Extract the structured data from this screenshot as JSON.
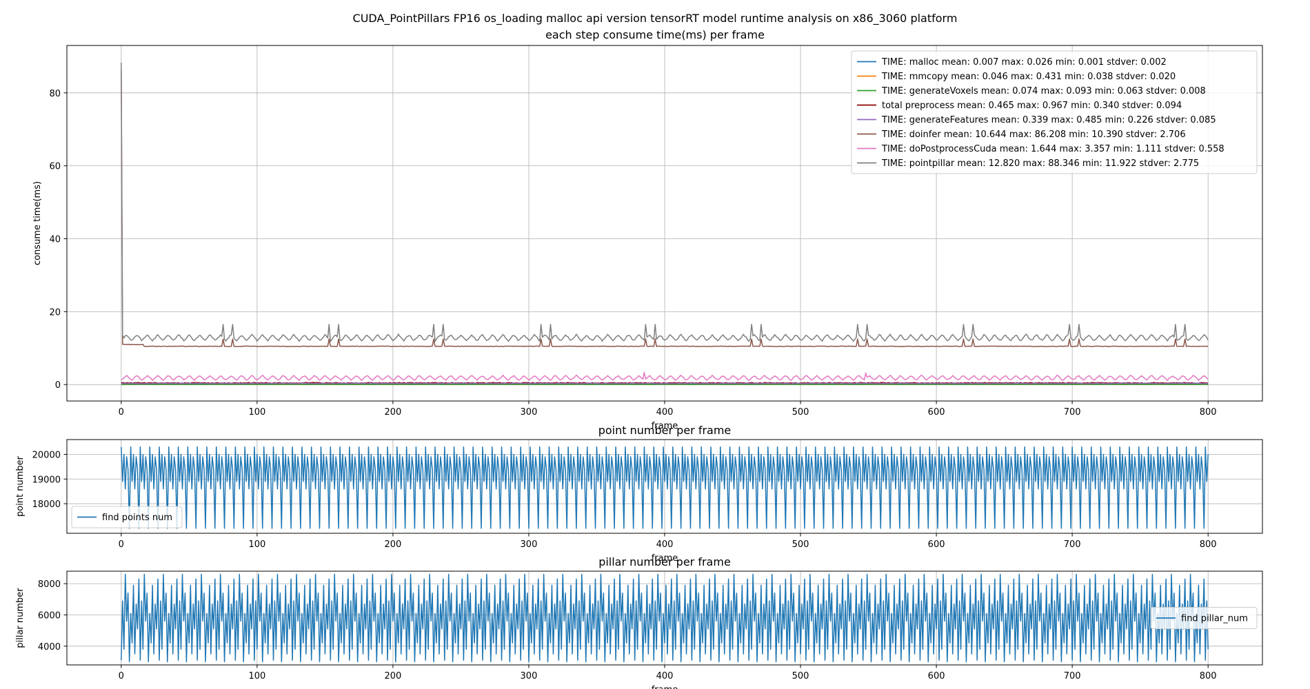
{
  "figure": {
    "suptitle_line1": "CUDA_PointPillars FP16 os_loading malloc api version tensorRT model runtime analysis on x86_3060 platform",
    "suptitle_line2": "each step consume time(ms) per frame"
  },
  "colors": {
    "tab_blue": "#1f77b4",
    "tab_orange": "#ff7f0e",
    "tab_green": "#2ca02c",
    "dark_red": "#8b0000",
    "tab_purple": "#9467bd",
    "tab_brown": "#8c564b",
    "tab_pink": "#e377c2",
    "tab_gray": "#7f7f7f",
    "grid": "#b0b0b0",
    "axes_edge": "#000000"
  },
  "chart_data": [
    {
      "type": "line",
      "title": "",
      "xlabel": "frame",
      "ylabel": "consume time(ms)",
      "xlim": [
        -40,
        840
      ],
      "ylim": [
        -4.5,
        93
      ],
      "xticks": [
        0,
        100,
        200,
        300,
        400,
        500,
        600,
        700,
        800
      ],
      "yticks": [
        0,
        20,
        40,
        60,
        80
      ],
      "grid": true,
      "legend_position": "upper right",
      "n_frames": 801,
      "series": [
        {
          "name": "TIME: malloc mean: 0.007 max: 0.026 min: 0.001 stdver: 0.002",
          "color": "#1f77b4",
          "mean": 0.007,
          "max": 0.026,
          "min": 0.001,
          "std": 0.002,
          "pattern": "flat"
        },
        {
          "name": "TIME: mmcopy mean: 0.046 max: 0.431 min: 0.038 stdver: 0.020",
          "color": "#ff7f0e",
          "mean": 0.046,
          "max": 0.431,
          "min": 0.038,
          "std": 0.02,
          "pattern": "flat"
        },
        {
          "name": "TIME: generateVoxels mean: 0.074 max: 0.093 min: 0.063 stdver: 0.008",
          "color": "#2ca02c",
          "mean": 0.074,
          "max": 0.093,
          "min": 0.063,
          "std": 0.008,
          "pattern": "flat"
        },
        {
          "name": "total preprocess mean: 0.465 max: 0.967 min: 0.340 stdver: 0.094",
          "color": "#8b0000",
          "mean": 0.465,
          "max": 0.967,
          "min": 0.34,
          "std": 0.094,
          "pattern": "flat"
        },
        {
          "name": "TIME: generateFeatures mean: 0.339 max: 0.485 min: 0.226 stdver: 0.085",
          "color": "#9467bd",
          "mean": 0.339,
          "max": 0.485,
          "min": 0.226,
          "std": 0.085,
          "pattern": "flat"
        },
        {
          "name": "TIME: doinfer mean: 10.644 max: 86.208 min: 10.390 stdver: 2.706",
          "color": "#8c564b",
          "mean": 10.644,
          "max": 86.208,
          "min": 10.39,
          "std": 2.706,
          "pattern": "infer",
          "first_frame": 86.2,
          "early_level": 11.0,
          "base_level": 10.5,
          "early_until_frame": 17,
          "spike_frames": [
            75,
            82,
            153,
            160,
            230,
            237,
            309,
            316,
            386,
            393,
            464,
            471,
            542,
            549,
            620,
            627,
            698,
            705,
            776,
            783
          ],
          "spike_value": 12.5
        },
        {
          "name": "TIME: doPostprocessCuda mean: 1.644 max: 3.357 min: 1.111 stdver: 0.558",
          "color": "#e377c2",
          "mean": 1.644,
          "max": 3.357,
          "min": 1.111,
          "std": 0.558,
          "pattern": "oscillating",
          "period": 7.7,
          "low": 1.2,
          "high": 2.5
        },
        {
          "name": "TIME: pointpillar mean: 12.820 max: 88.346 min: 11.922 stdver: 2.775",
          "color": "#7f7f7f",
          "mean": 12.82,
          "max": 88.346,
          "min": 11.922,
          "std": 2.775,
          "pattern": "total",
          "first_frame": 88.3,
          "low": 12.0,
          "high": 13.7,
          "period": 7.7,
          "spike_frames": [
            75,
            82,
            153,
            160,
            230,
            237,
            309,
            316,
            386,
            393,
            464,
            471,
            542,
            549,
            620,
            627,
            698,
            705,
            776,
            783
          ],
          "spike_value": 16.5
        }
      ]
    },
    {
      "type": "line",
      "title": "point number per frame",
      "xlabel": "frame",
      "ylabel": "point number",
      "xlim": [
        -40,
        840
      ],
      "ylim": [
        16800,
        20600
      ],
      "xticks": [
        0,
        100,
        200,
        300,
        400,
        500,
        600,
        700,
        800
      ],
      "yticks": [
        18000,
        19000,
        20000
      ],
      "grid": true,
      "legend_position": "lower left",
      "n_frames": 801,
      "series": [
        {
          "name": "find points num",
          "color": "#1f77b4",
          "pattern": "cycle",
          "cycle": [
            20300,
            18900,
            20000,
            18600,
            19900,
            19400,
            17000
          ]
        }
      ]
    },
    {
      "type": "line",
      "title": "pillar number per frame",
      "xlabel": "frame",
      "ylabel": "pillar number",
      "xlim": [
        -40,
        840
      ],
      "ylim": [
        2800,
        8800
      ],
      "xticks": [
        0,
        100,
        200,
        300,
        400,
        500,
        600,
        700,
        800
      ],
      "yticks": [
        4000,
        6000,
        8000
      ],
      "grid": true,
      "legend_position": "center right",
      "n_frames": 801,
      "series": [
        {
          "name": "find pillar_num",
          "color": "#1f77b4",
          "pattern": "cycle",
          "cycle": [
            3100,
            6900,
            3800,
            8600,
            5600,
            7400,
            3000,
            6100,
            4200,
            7900,
            3500,
            6700,
            5100,
            8300
          ]
        }
      ]
    }
  ]
}
